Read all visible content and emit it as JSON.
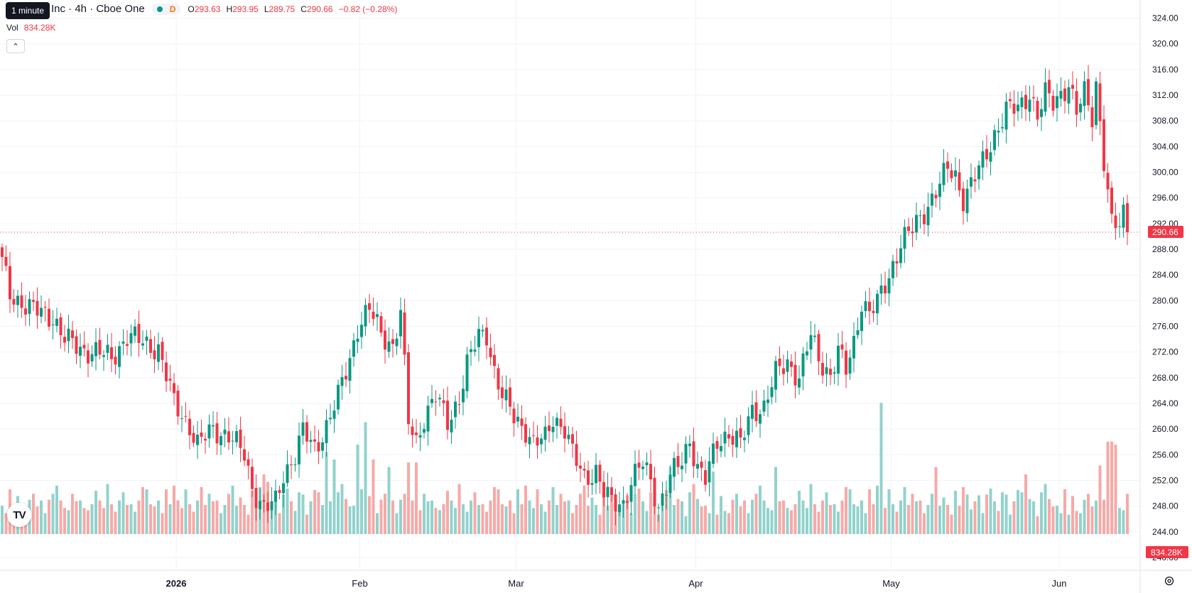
{
  "legend": {
    "tooltip": "1 minute",
    "symbol": "Inc · 4h · Cboe One",
    "timeframe_badge": "D",
    "open_label": "O",
    "open": "293.63",
    "high_label": "H",
    "high": "293.95",
    "low_label": "L",
    "low": "289.75",
    "close_label": "C",
    "close": "290.66",
    "change": "−0.82 (−0.28%)",
    "vol_label": "Vol",
    "vol": "834.28K"
  },
  "icons": {
    "collapse": "chevron-up-icon",
    "logo": "tradingview-logo",
    "settings": "gear-icon"
  },
  "colors": {
    "up": "#089981",
    "down": "#f23645",
    "vol_up": "#92d2cc",
    "vol_down": "#f7a9a7",
    "price_label": "#f23645"
  },
  "chart_data": {
    "type": "candlestick",
    "interval": "4h",
    "price_axis": {
      "ticks": [
        "324.00",
        "320.00",
        "316.00",
        "312.00",
        "308.00",
        "304.00",
        "300.00",
        "296.00",
        "292.00",
        "288.00",
        "284.00",
        "280.00",
        "276.00",
        "272.00",
        "268.00",
        "264.00",
        "260.00",
        "256.00",
        "252.00",
        "248.00",
        "244.00",
        "240.00"
      ],
      "range": [
        238,
        325.5
      ]
    },
    "time_axis": {
      "labels": [
        "2026",
        "Feb",
        "Mar",
        "Apr",
        "May",
        "Jun"
      ]
    },
    "last_price": "290.66",
    "last_volume": "834.28K",
    "anchors": [
      {
        "i": 0,
        "p": 286.0
      },
      {
        "i": 2,
        "p": 281.0
      },
      {
        "i": 8,
        "p": 278.5
      },
      {
        "i": 13,
        "p": 277.5
      },
      {
        "i": 16,
        "p": 274.0
      },
      {
        "i": 20,
        "p": 272.5
      },
      {
        "i": 24,
        "p": 272.0
      },
      {
        "i": 28,
        "p": 271.0
      },
      {
        "i": 32,
        "p": 274.5
      },
      {
        "i": 36,
        "p": 273.5
      },
      {
        "i": 40,
        "p": 272.5
      },
      {
        "i": 44,
        "p": 264.0
      },
      {
        "i": 48,
        "p": 260.5
      },
      {
        "i": 50,
        "p": 257.5
      },
      {
        "i": 54,
        "p": 260.0
      },
      {
        "i": 58,
        "p": 259.0
      },
      {
        "i": 62,
        "p": 256.0
      },
      {
        "i": 64,
        "p": 251.0
      },
      {
        "i": 67,
        "p": 247.5
      },
      {
        "i": 70,
        "p": 248.5
      },
      {
        "i": 72,
        "p": 253.0
      },
      {
        "i": 75,
        "p": 256.0
      },
      {
        "i": 77,
        "p": 259.5
      },
      {
        "i": 80,
        "p": 257.0
      },
      {
        "i": 83,
        "p": 260.5
      },
      {
        "i": 86,
        "p": 265.0
      },
      {
        "i": 89,
        "p": 271.0
      },
      {
        "i": 91,
        "p": 276.0
      },
      {
        "i": 94,
        "p": 278.5
      },
      {
        "i": 97,
        "p": 275.0
      },
      {
        "i": 100,
        "p": 273.0
      },
      {
        "i": 102,
        "p": 278.0
      },
      {
        "i": 104,
        "p": 261.0
      },
      {
        "i": 106,
        "p": 258.0
      },
      {
        "i": 108,
        "p": 262.0
      },
      {
        "i": 111,
        "p": 265.0
      },
      {
        "i": 114,
        "p": 261.0
      },
      {
        "i": 117,
        "p": 265.0
      },
      {
        "i": 119,
        "p": 270.0
      },
      {
        "i": 122,
        "p": 274.5
      },
      {
        "i": 124,
        "p": 275.0
      },
      {
        "i": 126,
        "p": 269.0
      },
      {
        "i": 128,
        "p": 265.0
      },
      {
        "i": 131,
        "p": 262.0
      },
      {
        "i": 134,
        "p": 260.0
      },
      {
        "i": 136,
        "p": 257.5
      },
      {
        "i": 139,
        "p": 258.5
      },
      {
        "i": 141,
        "p": 262.0
      },
      {
        "i": 144,
        "p": 260.0
      },
      {
        "i": 146,
        "p": 256.0
      },
      {
        "i": 149,
        "p": 252.5
      },
      {
        "i": 152,
        "p": 253.5
      },
      {
        "i": 154,
        "p": 250.0
      },
      {
        "i": 156,
        "p": 248.5
      },
      {
        "i": 159,
        "p": 248.5
      },
      {
        "i": 161,
        "p": 252.0
      },
      {
        "i": 164,
        "p": 254.5
      },
      {
        "i": 166,
        "p": 252.0
      },
      {
        "i": 168,
        "p": 248.0
      },
      {
        "i": 171,
        "p": 252.5
      },
      {
        "i": 174,
        "p": 255.0
      },
      {
        "i": 176,
        "p": 258.5
      },
      {
        "i": 178,
        "p": 254.0
      },
      {
        "i": 180,
        "p": 252.0
      },
      {
        "i": 183,
        "p": 258.0
      },
      {
        "i": 186,
        "p": 259.5
      },
      {
        "i": 189,
        "p": 257.5
      },
      {
        "i": 192,
        "p": 263.0
      },
      {
        "i": 195,
        "p": 263.5
      },
      {
        "i": 198,
        "p": 268.5
      },
      {
        "i": 201,
        "p": 270.5
      },
      {
        "i": 204,
        "p": 268.0
      },
      {
        "i": 207,
        "p": 274.5
      },
      {
        "i": 209,
        "p": 271.0
      },
      {
        "i": 212,
        "p": 268.5
      },
      {
        "i": 214,
        "p": 272.0
      },
      {
        "i": 216,
        "p": 269.0
      },
      {
        "i": 218,
        "p": 273.5
      },
      {
        "i": 220,
        "p": 280.0
      },
      {
        "i": 222,
        "p": 278.0
      },
      {
        "i": 224,
        "p": 279.5
      },
      {
        "i": 227,
        "p": 284.0
      },
      {
        "i": 230,
        "p": 289.0
      },
      {
        "i": 233,
        "p": 291.0
      },
      {
        "i": 235,
        "p": 293.0
      },
      {
        "i": 238,
        "p": 296.0
      },
      {
        "i": 240,
        "p": 298.0
      },
      {
        "i": 242,
        "p": 300.5
      },
      {
        "i": 244,
        "p": 299.5
      },
      {
        "i": 246,
        "p": 296.0
      },
      {
        "i": 248,
        "p": 298.0
      },
      {
        "i": 251,
        "p": 301.5
      },
      {
        "i": 254,
        "p": 306.0
      },
      {
        "i": 257,
        "p": 309.5
      },
      {
        "i": 260,
        "p": 310.0
      },
      {
        "i": 263,
        "p": 312.5
      },
      {
        "i": 265,
        "p": 308.5
      },
      {
        "i": 267,
        "p": 312.0
      },
      {
        "i": 269,
        "p": 311.0
      },
      {
        "i": 271,
        "p": 312.5
      },
      {
        "i": 273,
        "p": 313.5
      },
      {
        "i": 275,
        "p": 309.0
      },
      {
        "i": 277,
        "p": 312.5
      },
      {
        "i": 279,
        "p": 309.0
      },
      {
        "i": 280,
        "p": 314.0
      },
      {
        "i": 282,
        "p": 301.5
      },
      {
        "i": 284,
        "p": 291.5
      },
      {
        "i": 286,
        "p": 292.0
      },
      {
        "i": 287,
        "p": 294.0
      },
      {
        "i": 288,
        "p": 290.66
      }
    ],
    "volume_profile": [
      2,
      0,
      4,
      0,
      3,
      1,
      0,
      2,
      4,
      1,
      3,
      0,
      2,
      4,
      5,
      3,
      1,
      0,
      4,
      2,
      3,
      1,
      0,
      2,
      4,
      3,
      1,
      5,
      2,
      0,
      3,
      4,
      1,
      2,
      0,
      3,
      5,
      4,
      2,
      1,
      3,
      0,
      4,
      2,
      5,
      3,
      1,
      4,
      2,
      0,
      3,
      5,
      1,
      4,
      2,
      3,
      0,
      1,
      4,
      5,
      2,
      3,
      1,
      0,
      4,
      2,
      5,
      3,
      1,
      2,
      4,
      0,
      3,
      5,
      2,
      1,
      4,
      3,
      0,
      2,
      5,
      4,
      1,
      3,
      2,
      0,
      4,
      5,
      3,
      1
    ],
    "volume_spikes": [
      {
        "i": 67,
        "v": 0.4
      },
      {
        "i": 68,
        "v": 0.35
      },
      {
        "i": 83,
        "v": 0.55
      },
      {
        "i": 85,
        "v": 0.5
      },
      {
        "i": 91,
        "v": 0.6
      },
      {
        "i": 93,
        "v": 0.75
      },
      {
        "i": 95,
        "v": 0.5
      },
      {
        "i": 99,
        "v": 0.45
      },
      {
        "i": 104,
        "v": 0.48
      },
      {
        "i": 106,
        "v": 0.48
      },
      {
        "i": 171,
        "v": 0.45
      },
      {
        "i": 182,
        "v": 0.42
      },
      {
        "i": 198,
        "v": 0.45
      },
      {
        "i": 225,
        "v": 0.88
      },
      {
        "i": 239,
        "v": 0.45
      },
      {
        "i": 262,
        "v": 0.4
      },
      {
        "i": 281,
        "v": 0.46
      },
      {
        "i": 283,
        "v": 0.62
      },
      {
        "i": 284,
        "v": 0.62
      },
      {
        "i": 285,
        "v": 0.6
      }
    ]
  }
}
